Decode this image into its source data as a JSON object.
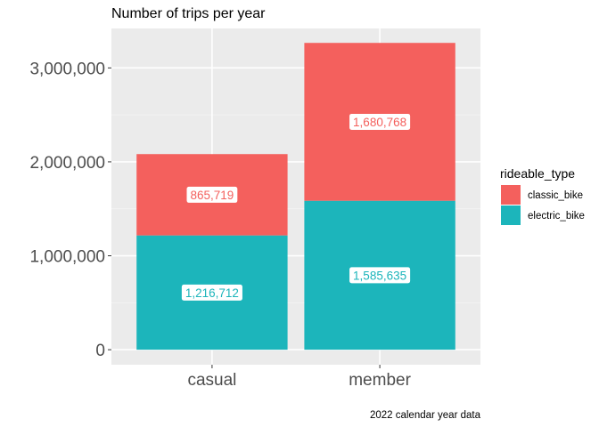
{
  "chart_data": {
    "type": "bar",
    "stacked": true,
    "title": "Number of trips per year",
    "caption": "2022 calendar year data",
    "xlabel": "",
    "ylabel": "",
    "categories": [
      "casual",
      "member"
    ],
    "series": [
      {
        "name": "electric_bike",
        "color": "#1CB5BB",
        "values": [
          1216712,
          1585635
        ]
      },
      {
        "name": "classic_bike",
        "color": "#F4605D",
        "values": [
          865719,
          1680768
        ]
      }
    ],
    "data_labels": [
      [
        "1,216,712",
        "1,585,635"
      ],
      [
        "865,719",
        "1,680,768"
      ]
    ],
    "ylim": [
      -160000,
      3420000
    ],
    "yticks": [
      0,
      1000000,
      2000000,
      3000000
    ],
    "ytick_labels": [
      "0",
      "1,000,000",
      "2,000,000",
      "3,000,000"
    ],
    "legend": {
      "title": "rideable_type",
      "placement": "right",
      "entries": [
        {
          "label": "classic_bike",
          "color": "#F4605D"
        },
        {
          "label": "electric_bike",
          "color": "#1CB5BB"
        }
      ]
    },
    "grid": true,
    "panel_background": "#EBEBEB"
  }
}
